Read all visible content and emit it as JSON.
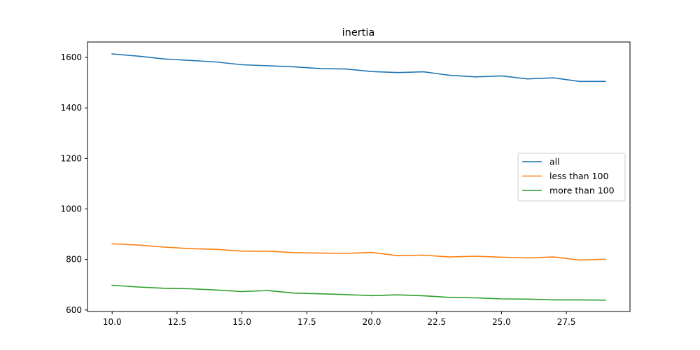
{
  "chart_data": {
    "type": "line",
    "title": "inertia",
    "xlabel": "",
    "ylabel": "",
    "x": [
      10,
      11,
      12,
      13,
      14,
      15,
      16,
      17,
      18,
      19,
      20,
      21,
      22,
      23,
      24,
      25,
      26,
      27,
      28,
      29
    ],
    "xlim": [
      9.05,
      29.95
    ],
    "ylim": [
      594,
      1661
    ],
    "xticks": [
      10.0,
      12.5,
      15.0,
      17.5,
      20.0,
      22.5,
      25.0,
      27.5
    ],
    "xtick_labels": [
      "10.0",
      "12.5",
      "15.0",
      "17.5",
      "20.0",
      "22.5",
      "25.0",
      "27.5"
    ],
    "yticks": [
      600,
      800,
      1000,
      1200,
      1400,
      1600
    ],
    "ytick_labels": [
      "600",
      "800",
      "1000",
      "1200",
      "1400",
      "1600"
    ],
    "grid": false,
    "legend_position": "center-right",
    "series": [
      {
        "name": "all",
        "color": "#1f77b4",
        "values": [
          1614,
          1605,
          1594,
          1588,
          1582,
          1571,
          1567,
          1563,
          1556,
          1554,
          1544,
          1540,
          1543,
          1529,
          1523,
          1527,
          1515,
          1519,
          1505,
          1505
        ]
      },
      {
        "name": "less than 100",
        "color": "#ff7f0e",
        "values": [
          862,
          857,
          849,
          843,
          840,
          833,
          833,
          827,
          825,
          824,
          828,
          815,
          817,
          810,
          813,
          809,
          806,
          810,
          798,
          801
        ]
      },
      {
        "name": "more than 100",
        "color": "#2ca02c",
        "values": [
          698,
          691,
          686,
          684,
          679,
          673,
          677,
          667,
          664,
          661,
          657,
          660,
          656,
          650,
          648,
          644,
          643,
          640,
          640,
          639
        ]
      }
    ]
  }
}
